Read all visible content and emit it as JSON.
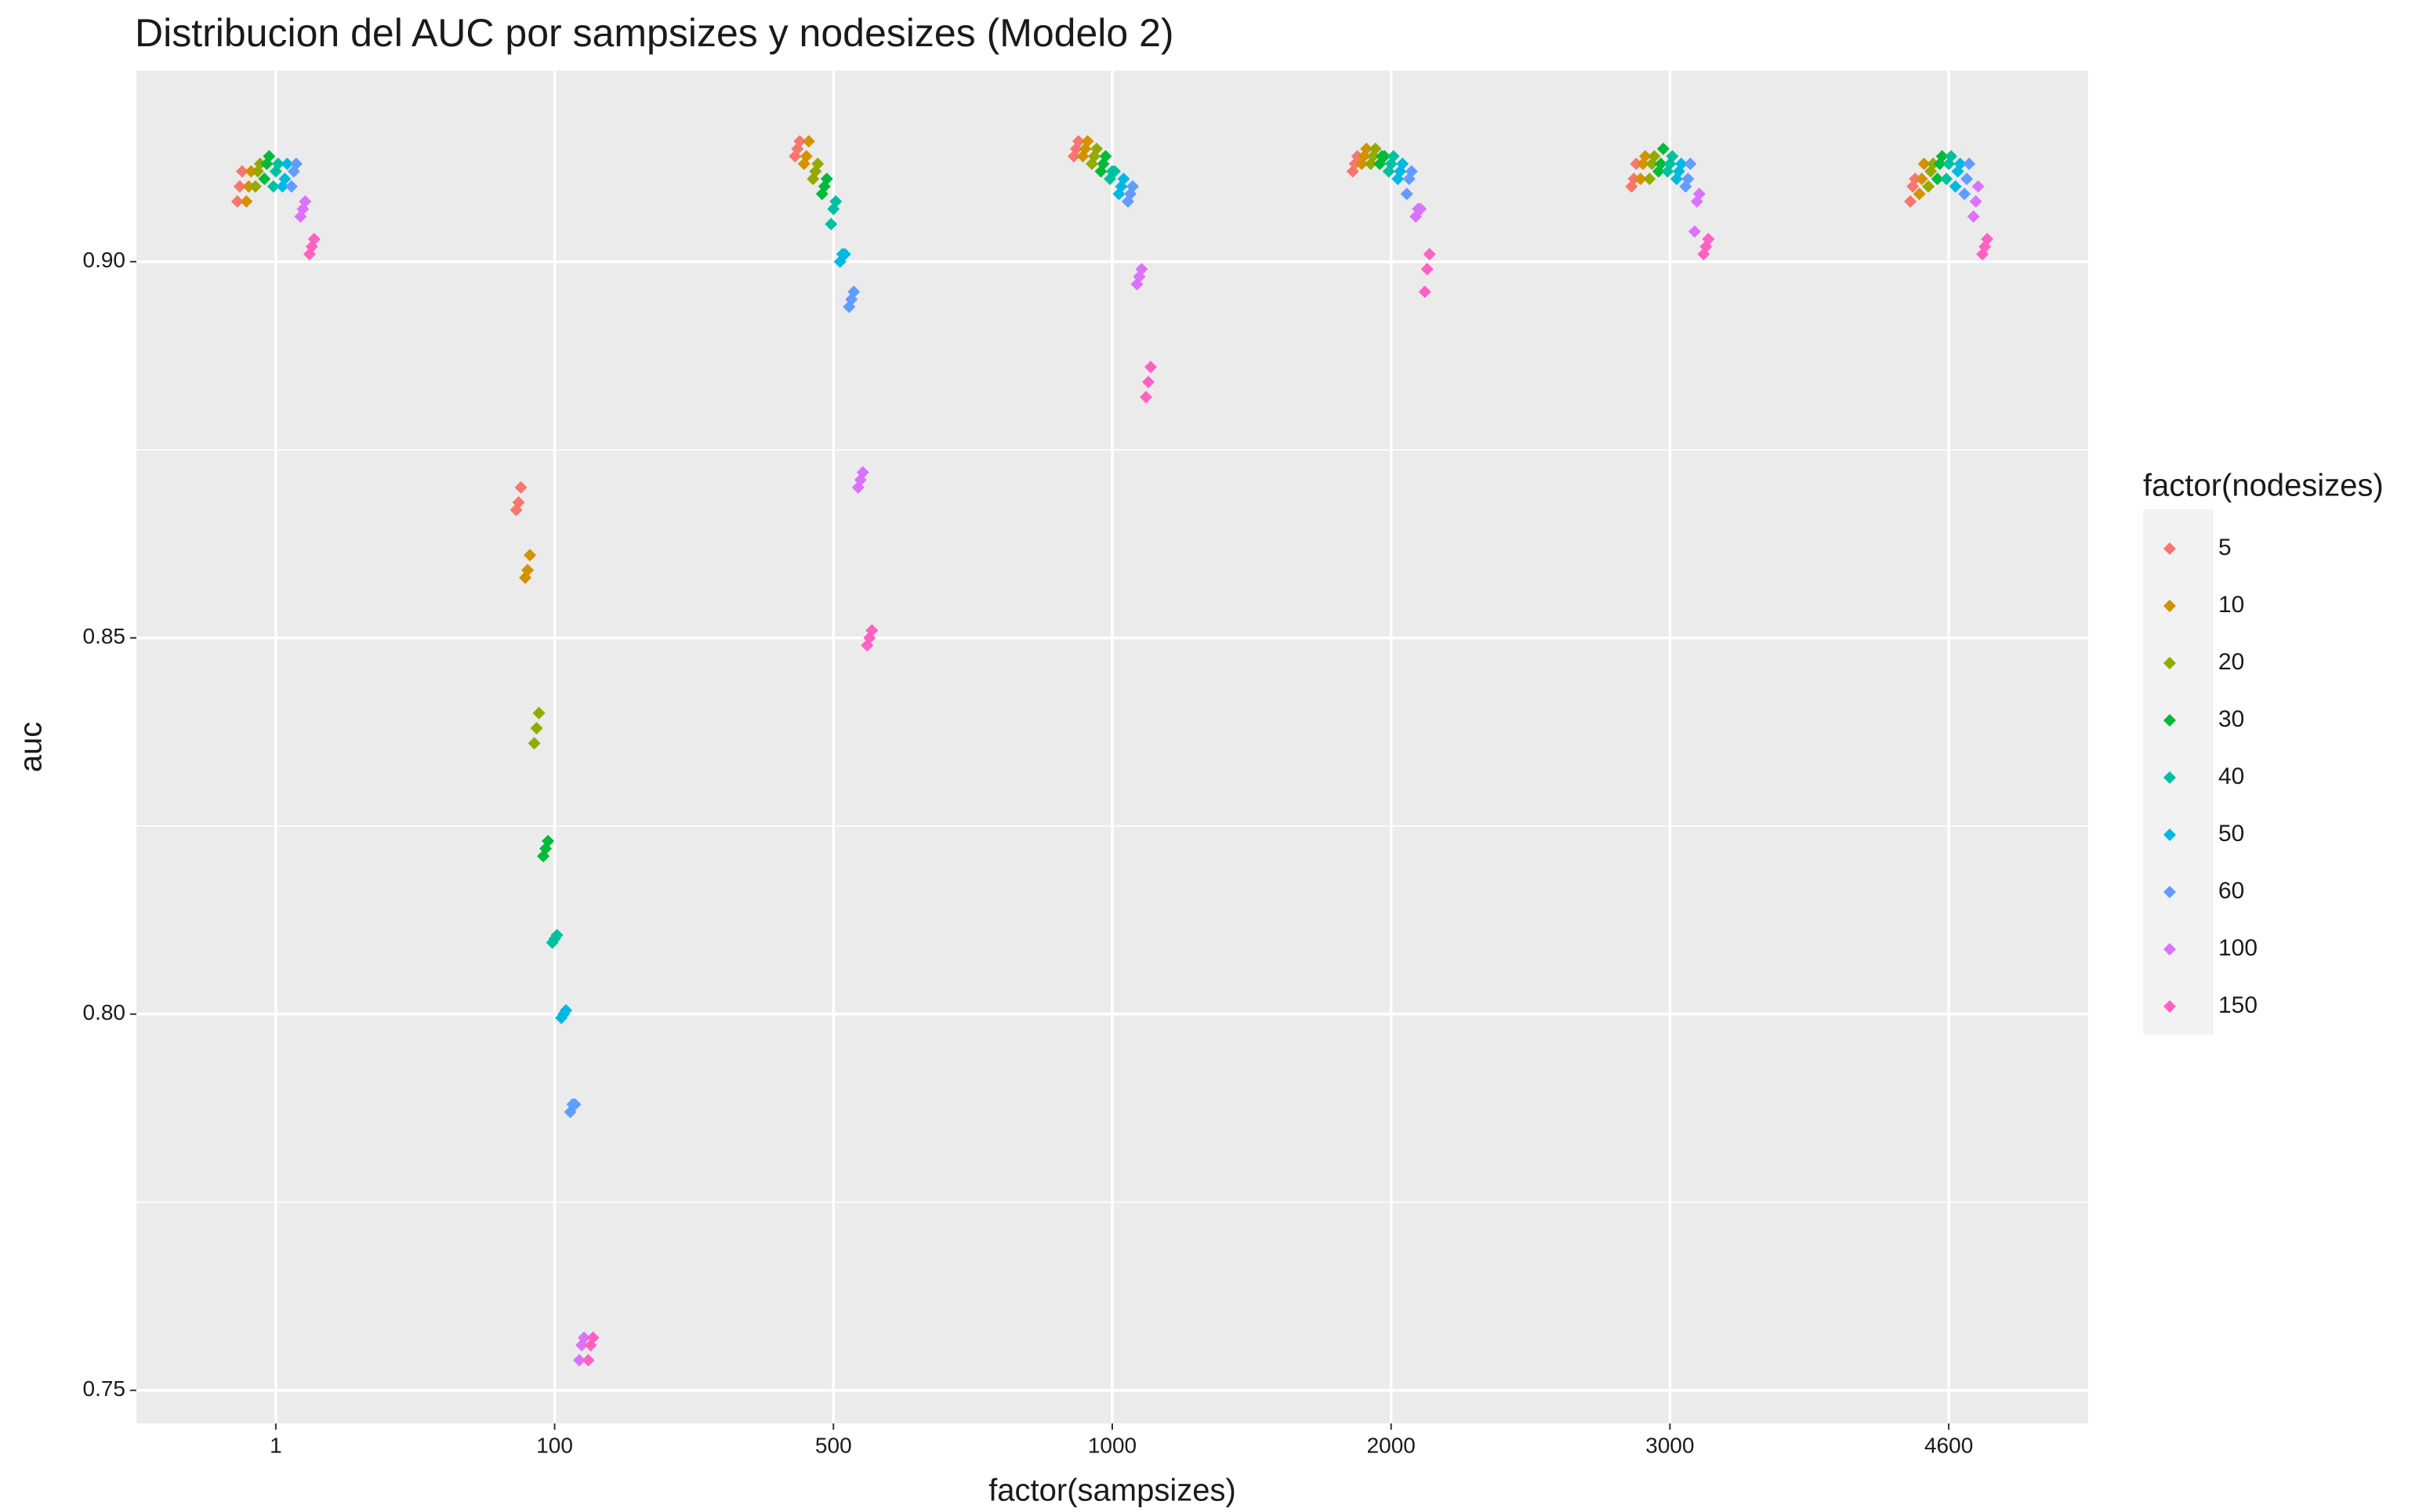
{
  "chart_data": {
    "type": "scatter",
    "title": "Distribucion del AUC por sampsizes y nodesizes (Modelo 2)",
    "x_label": "factor(sampsizes)",
    "y_label": "auc",
    "legend_title": "factor(nodesizes)",
    "legend_position": "right",
    "categories": [
      "1",
      "100",
      "500",
      "1000",
      "2000",
      "3000",
      "4600"
    ],
    "ylim": [
      0.7456,
      0.9254
    ],
    "yticks": [
      0.75,
      {
        "value": 0.8,
        "label": "0.80"
      },
      0.85,
      {
        "value": 0.9,
        "label": "0.90"
      }
    ],
    "y_minor_grid": [
      0.775,
      0.825,
      0.875
    ],
    "grid": true,
    "series": [
      {
        "name": "5",
        "color": "#F8766D",
        "values": [
          [
            0.908,
            0.91,
            0.912
          ],
          [
            0.867,
            0.868,
            0.87
          ],
          [
            0.914,
            0.915,
            0.916
          ],
          [
            0.914,
            0.915,
            0.916
          ],
          [
            0.912,
            0.913,
            0.914
          ],
          [
            0.91,
            0.911,
            0.913
          ],
          [
            0.908,
            0.91,
            0.911
          ]
        ]
      },
      {
        "name": "10",
        "color": "#D39200",
        "values": [
          [
            0.908,
            0.91,
            0.912
          ],
          [
            0.858,
            0.859,
            0.861
          ],
          [
            0.913,
            0.914,
            0.916
          ],
          [
            0.914,
            0.915,
            0.916
          ],
          [
            0.913,
            0.914,
            0.915
          ],
          [
            0.911,
            0.913,
            0.914
          ],
          [
            0.909,
            0.911,
            0.913
          ]
        ]
      },
      {
        "name": "20",
        "color": "#93AA00",
        "values": [
          [
            0.91,
            0.912,
            0.913
          ],
          [
            0.836,
            0.838,
            0.84
          ],
          [
            0.911,
            0.912,
            0.913
          ],
          [
            0.913,
            0.914,
            0.915
          ],
          [
            0.913,
            0.914,
            0.915
          ],
          [
            0.911,
            0.913,
            0.914
          ],
          [
            0.91,
            0.912,
            0.913
          ]
        ]
      },
      {
        "name": "30",
        "color": "#00BA38",
        "values": [
          [
            0.911,
            0.913,
            0.914
          ],
          [
            0.821,
            0.822,
            0.823
          ],
          [
            0.909,
            0.91,
            0.911
          ],
          [
            0.912,
            0.913,
            0.914
          ],
          [
            0.913,
            0.914,
            0.914
          ],
          [
            0.912,
            0.913,
            0.915
          ],
          [
            0.911,
            0.913,
            0.914
          ]
        ]
      },
      {
        "name": "40",
        "color": "#00C19F",
        "values": [
          [
            0.91,
            0.912,
            0.913
          ],
          [
            0.8095,
            0.81,
            0.8105
          ],
          [
            0.905,
            0.907,
            0.908
          ],
          [
            0.911,
            0.912,
            0.912
          ],
          [
            0.912,
            0.913,
            0.914
          ],
          [
            0.912,
            0.913,
            0.914
          ],
          [
            0.911,
            0.913,
            0.914
          ]
        ]
      },
      {
        "name": "50",
        "color": "#00B9E3",
        "values": [
          [
            0.91,
            0.911,
            0.913
          ],
          [
            0.7995,
            0.8,
            0.8005
          ],
          [
            0.9,
            0.901,
            0.901
          ],
          [
            0.909,
            0.91,
            0.911
          ],
          [
            0.911,
            0.912,
            0.913
          ],
          [
            0.911,
            0.912,
            0.913
          ],
          [
            0.91,
            0.912,
            0.913
          ]
        ]
      },
      {
        "name": "60",
        "color": "#619CFF",
        "values": [
          [
            0.91,
            0.912,
            0.913
          ],
          [
            0.787,
            0.788,
            0.788
          ],
          [
            0.894,
            0.895,
            0.896
          ],
          [
            0.908,
            0.909,
            0.91
          ],
          [
            0.909,
            0.911,
            0.912
          ],
          [
            0.91,
            0.911,
            0.913
          ],
          [
            0.909,
            0.911,
            0.913
          ]
        ]
      },
      {
        "name": "100",
        "color": "#DB72FB",
        "values": [
          [
            0.906,
            0.907,
            0.908
          ],
          [
            0.754,
            0.756,
            0.757
          ],
          [
            0.87,
            0.871,
            0.872
          ],
          [
            0.897,
            0.898,
            0.899
          ],
          [
            0.906,
            0.907,
            0.907
          ],
          [
            0.904,
            0.908,
            0.909
          ],
          [
            0.906,
            0.908,
            0.91
          ]
        ]
      },
      {
        "name": "150",
        "color": "#FF61C3",
        "values": [
          [
            0.901,
            0.902,
            0.903
          ],
          [
            0.754,
            0.756,
            0.757
          ],
          [
            0.849,
            0.85,
            0.851
          ],
          [
            0.882,
            0.884,
            0.886
          ],
          [
            0.896,
            0.899,
            0.901
          ],
          [
            0.901,
            0.902,
            0.903
          ],
          [
            0.901,
            0.902,
            0.903
          ]
        ]
      }
    ]
  }
}
